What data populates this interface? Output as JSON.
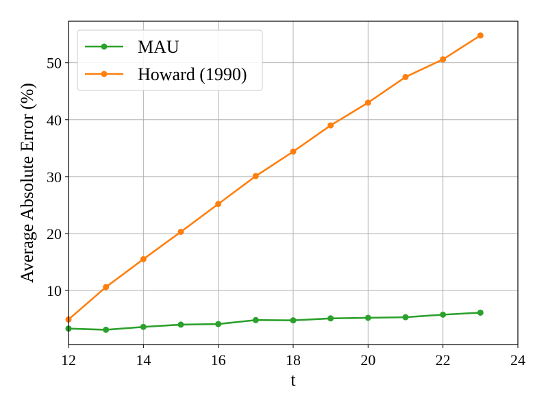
{
  "chart_data": {
    "type": "line",
    "xlabel": "t",
    "ylabel": "Average Absolute Error (%)",
    "xlim": [
      12,
      24
    ],
    "ylim": [
      0.5,
      57.3
    ],
    "xticks": [
      12,
      14,
      16,
      18,
      20,
      22,
      24
    ],
    "yticks": [
      10,
      20,
      30,
      40,
      50
    ],
    "grid": true,
    "legend_position": "top-left",
    "x": [
      12,
      13,
      14,
      15,
      16,
      17,
      18,
      19,
      20,
      21,
      22,
      23
    ],
    "series": [
      {
        "name": "MAU",
        "color": "#2ca02c",
        "values": [
          3.3,
          3.1,
          3.6,
          4.0,
          4.1,
          4.8,
          4.75,
          5.1,
          5.2,
          5.3,
          5.75,
          6.1
        ]
      },
      {
        "name": "Howard (1990)",
        "color": "#ff7f0e",
        "values": [
          4.9,
          10.6,
          15.5,
          20.3,
          25.2,
          30.1,
          34.4,
          39.0,
          43.0,
          47.5,
          50.6,
          54.8
        ]
      }
    ]
  }
}
